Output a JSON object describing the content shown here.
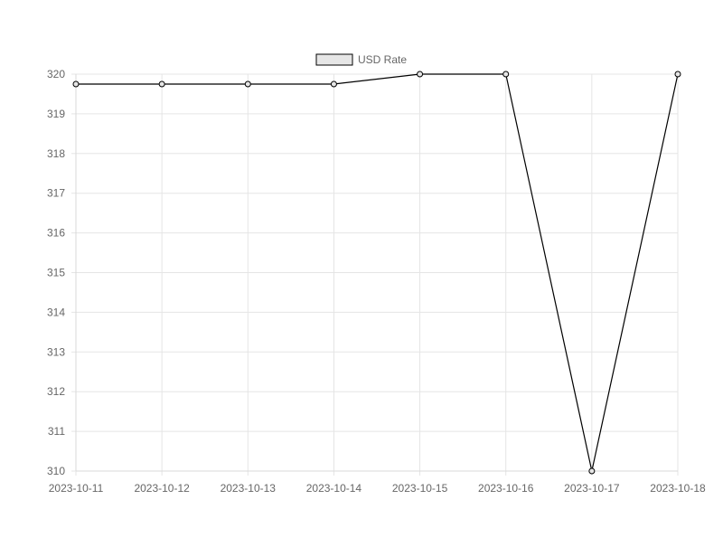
{
  "chart_data": {
    "type": "line",
    "x": [
      "2023-10-11",
      "2023-10-12",
      "2023-10-13",
      "2023-10-14",
      "2023-10-15",
      "2023-10-16",
      "2023-10-17",
      "2023-10-18"
    ],
    "series": [
      {
        "name": "USD Rate",
        "values": [
          319.75,
          319.75,
          319.75,
          319.75,
          320,
          320,
          310,
          320
        ],
        "color": "#000000",
        "fill": "#e6e6e6"
      }
    ],
    "yticks": [
      "310",
      "311",
      "312",
      "313",
      "314",
      "315",
      "316",
      "317",
      "318",
      "319",
      "320"
    ],
    "ylim": [
      310,
      320
    ],
    "grid": true,
    "legend": "top-center",
    "title": "",
    "xlabel": "",
    "ylabel": ""
  }
}
